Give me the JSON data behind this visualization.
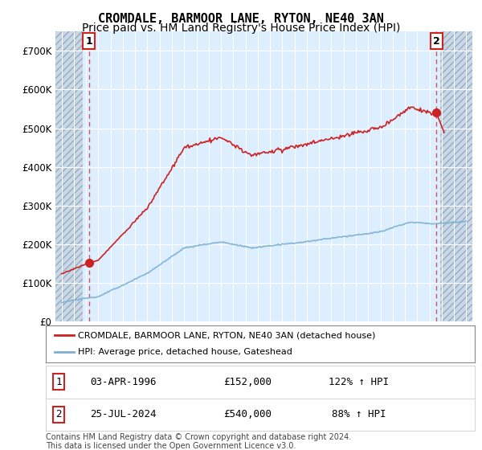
{
  "title": "CROMDALE, BARMOOR LANE, RYTON, NE40 3AN",
  "subtitle": "Price paid vs. HM Land Registry's House Price Index (HPI)",
  "ylim": [
    0,
    750000
  ],
  "xlim_start": 1993.5,
  "xlim_end": 2027.5,
  "yticks": [
    0,
    100000,
    200000,
    300000,
    400000,
    500000,
    600000,
    700000
  ],
  "ytick_labels": [
    "£0",
    "£100K",
    "£200K",
    "£300K",
    "£400K",
    "£500K",
    "£600K",
    "£700K"
  ],
  "hpi_color": "#7ab0d4",
  "price_color": "#cc2222",
  "point1_x": 1996.25,
  "point1_y": 152000,
  "point2_x": 2024.56,
  "point2_y": 540000,
  "point1_label": "1",
  "point2_label": "2",
  "legend_label_price": "CROMDALE, BARMOOR LANE, RYTON, NE40 3AN (detached house)",
  "legend_label_hpi": "HPI: Average price, detached house, Gateshead",
  "table_row1": [
    "1",
    "03-APR-1996",
    "£152,000",
    "122% ↑ HPI"
  ],
  "table_row2": [
    "2",
    "25-JUL-2024",
    "£540,000",
    "88% ↑ HPI"
  ],
  "footnote": "Contains HM Land Registry data © Crown copyright and database right 2024.\nThis data is licensed under the Open Government Licence v3.0.",
  "bg_color": "#ddeeff",
  "hatch_color": "#c8d8e8",
  "grid_color": "#ffffff",
  "title_fontsize": 11,
  "subtitle_fontsize": 10,
  "hatch_left_end": 1995.7,
  "hatch_right_start": 2024.9
}
